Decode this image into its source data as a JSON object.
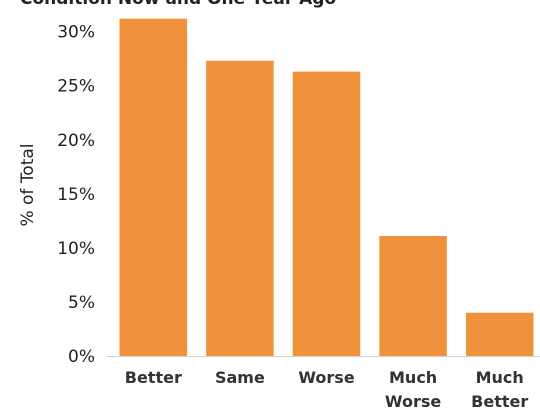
{
  "chart_data": {
    "type": "bar",
    "title": "Condition Now and One Year Ago",
    "xlabel": "",
    "ylabel": "% of Total",
    "categories": [
      [
        "Better"
      ],
      [
        "Same"
      ],
      [
        "Worse"
      ],
      [
        "Much",
        "Worse"
      ],
      [
        "Much",
        "Better"
      ]
    ],
    "values": [
      31.2,
      27.3,
      26.3,
      11.1,
      4.0
    ],
    "ylim": [
      0,
      32
    ],
    "yticks": [
      {
        "value": 0,
        "label": "0%"
      },
      {
        "value": 5,
        "label": "5%"
      },
      {
        "value": 10,
        "label": "10%"
      },
      {
        "value": 15,
        "label": "15%"
      },
      {
        "value": 20,
        "label": "20%"
      },
      {
        "value": 25,
        "label": "25%"
      },
      {
        "value": 30,
        "label": "30%"
      }
    ],
    "grid": false,
    "bar_color": "#F0923C"
  }
}
